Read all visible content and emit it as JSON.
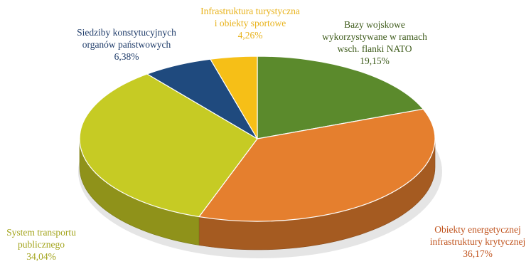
{
  "chart_data": {
    "type": "pie",
    "title": "",
    "slices": [
      {
        "key": "bases",
        "label_lines": [
          "Bazy wojskowe",
          "wykorzystywane w ramach",
          "wsch. flanki NATO"
        ],
        "value": 19.15,
        "value_label": "19,15%",
        "color": "#5b8a2c"
      },
      {
        "key": "energy",
        "label_lines": [
          "Obiekty energetycznej",
          "infrastruktury krytycznej"
        ],
        "value": 36.17,
        "value_label": "36,17%",
        "color": "#e57f2e"
      },
      {
        "key": "transport",
        "label_lines": [
          "System transportu",
          "publicznego"
        ],
        "value": 34.04,
        "value_label": "34,04%",
        "color": "#c6cb24"
      },
      {
        "key": "seats",
        "label_lines": [
          "Siedziby konstytucyjnych",
          "organów państwowych"
        ],
        "value": 6.38,
        "value_label": "6,38%",
        "color": "#1f4a7e"
      },
      {
        "key": "infra",
        "label_lines": [
          "Infrastruktura turystyczna",
          "i obiekty sportowe"
        ],
        "value": 4.26,
        "value_label": "4,26%",
        "color": "#f6bf17"
      }
    ]
  }
}
